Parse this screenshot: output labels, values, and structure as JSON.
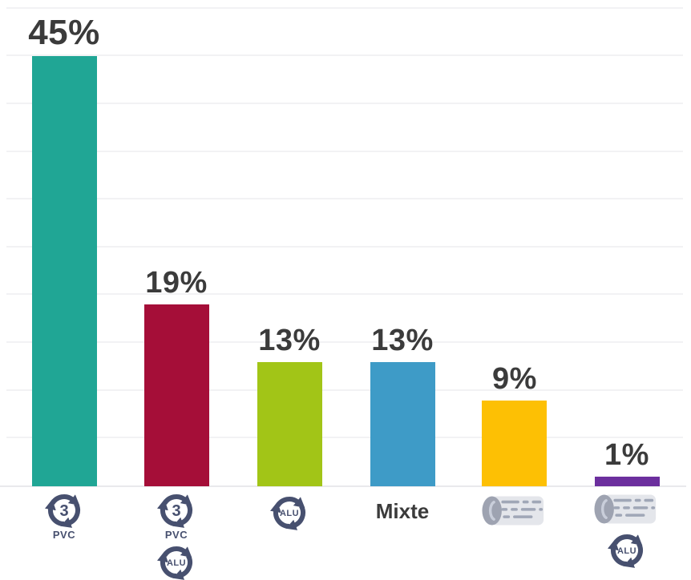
{
  "chart_data": {
    "type": "bar",
    "title": "",
    "xlabel": "",
    "ylabel": "",
    "values": [
      45,
      19,
      13,
      13,
      9,
      1
    ],
    "data_labels": [
      "45%",
      "19%",
      "13%",
      "13%",
      "9%",
      "1%"
    ],
    "bar_colors": [
      "#20A695",
      "#A50E38",
      "#A2C517",
      "#3E9BC7",
      "#FDC004",
      "#6C2F9E"
    ],
    "categories": [
      {
        "text": "",
        "icons": [
          "recycling-3-pvc-icon"
        ]
      },
      {
        "text": "",
        "icons": [
          "recycling-3-pvc-icon",
          "recycling-alu-icon"
        ]
      },
      {
        "text": "",
        "icons": [
          "recycling-alu-icon"
        ]
      },
      {
        "text": "Mixte",
        "icons": []
      },
      {
        "text": "",
        "icons": [
          "paper-roll-icon"
        ]
      },
      {
        "text": "",
        "icons": [
          "paper-roll-icon",
          "recycling-alu-icon"
        ]
      }
    ],
    "ylim": [
      0,
      50
    ],
    "grid_step_percent": 5,
    "grid": "horizontal",
    "legend": "none"
  },
  "icon_texts": {
    "recycle_code": "3",
    "pvc": "PVC",
    "alu": "ALU"
  },
  "colors": {
    "label_text": "#3B3B3B",
    "icon_slate": "#47506F",
    "gridline": "#F2F2F4",
    "baseline": "#E9E9EC",
    "background": "#FFFFFF"
  }
}
